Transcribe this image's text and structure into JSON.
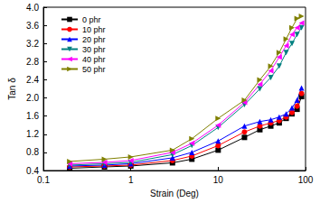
{
  "chart_data": {
    "type": "line",
    "x_label": "Strain (Deg)",
    "y_label": "Tan δ",
    "log": "x",
    "grid": false,
    "legend": "upper left",
    "xlim": [
      0.1,
      100
    ],
    "xticks": [
      0.1,
      1,
      10,
      100
    ],
    "ylim": [
      0.4,
      4
    ],
    "yticks": [
      0.4,
      0.8,
      1.2,
      1.6,
      {
        "value": 2,
        "label": "2.0"
      },
      2.4,
      2.8,
      3.2,
      3.6,
      {
        "value": 4,
        "label": "4.0"
      }
    ],
    "x": [
      0.2,
      0.5,
      1,
      3,
      5,
      10,
      20,
      30,
      40,
      50,
      60,
      70,
      80,
      90
    ],
    "series": [
      {
        "name": "0 phr",
        "color": "#000000",
        "marker": "square",
        "values": [
          0.45,
          0.48,
          0.5,
          0.57,
          0.65,
          0.85,
          1.13,
          1.3,
          1.38,
          1.45,
          1.55,
          1.65,
          1.75,
          2.03
        ]
      },
      {
        "name": "10 phr",
        "color": "#ff0000",
        "marker": "circle",
        "values": [
          0.48,
          0.5,
          0.52,
          0.62,
          0.72,
          0.95,
          1.25,
          1.38,
          1.45,
          1.5,
          1.58,
          1.68,
          1.82,
          2.1
        ]
      },
      {
        "name": "20 phr",
        "color": "#0000ff",
        "marker": "triangle",
        "values": [
          0.5,
          0.52,
          0.55,
          0.68,
          0.8,
          1.05,
          1.38,
          1.48,
          1.52,
          1.58,
          1.65,
          1.78,
          1.95,
          2.22
        ]
      },
      {
        "name": "30 phr",
        "color": "#008080",
        "marker": "triangle_down",
        "values": [
          0.52,
          0.55,
          0.58,
          0.75,
          0.95,
          1.35,
          1.85,
          2.2,
          2.45,
          2.7,
          3.0,
          3.2,
          3.4,
          3.55
        ]
      },
      {
        "name": "40 phr",
        "color": "#ff00ff",
        "marker": "triangle_left",
        "values": [
          0.55,
          0.58,
          0.62,
          0.8,
          1.0,
          1.4,
          1.9,
          2.3,
          2.6,
          2.9,
          3.15,
          3.4,
          3.55,
          3.65
        ]
      },
      {
        "name": "50 phr",
        "color": "#808000",
        "marker": "triangle_right",
        "values": [
          0.6,
          0.65,
          0.7,
          0.85,
          1.1,
          1.55,
          1.95,
          2.4,
          2.7,
          3.0,
          3.3,
          3.55,
          3.75,
          3.8
        ]
      }
    ]
  }
}
